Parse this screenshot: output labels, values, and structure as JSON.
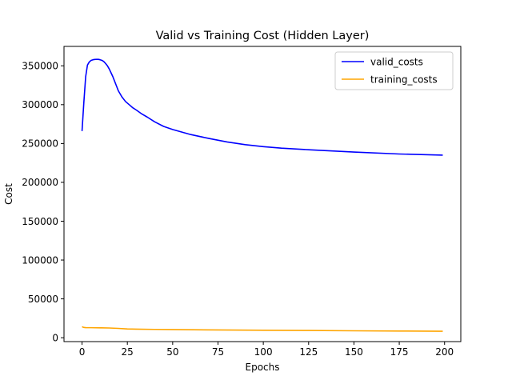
{
  "chart_data": {
    "type": "line",
    "title": "Valid vs Training Cost (Hidden Layer)",
    "xlabel": "Epochs",
    "ylabel": "Cost",
    "xlim": [
      -9.95,
      208.95
    ],
    "ylim": [
      -5000,
      375000
    ],
    "xticks": [
      0,
      25,
      50,
      75,
      100,
      125,
      150,
      175,
      200
    ],
    "yticks": [
      0,
      50000,
      100000,
      150000,
      200000,
      250000,
      300000,
      350000
    ],
    "grid": false,
    "legend_position": "top-right",
    "series": [
      {
        "name": "valid_costs",
        "color": "#0000ff",
        "x": [
          0,
          1,
          2,
          3,
          4,
          5,
          6,
          7,
          8,
          9,
          10,
          11,
          12,
          13,
          14,
          15,
          16,
          17,
          18,
          19,
          20,
          22,
          24,
          26,
          28,
          30,
          33,
          36,
          40,
          45,
          50,
          60,
          70,
          80,
          90,
          100,
          110,
          125,
          150,
          175,
          199
        ],
        "y": [
          266000,
          303000,
          336000,
          351000,
          355000,
          357000,
          357800,
          358200,
          358400,
          358300,
          357800,
          357000,
          355500,
          353000,
          350000,
          346000,
          341000,
          336000,
          330000,
          324000,
          318000,
          310000,
          304000,
          300000,
          296000,
          293000,
          288000,
          284000,
          278000,
          272000,
          268000,
          261500,
          256500,
          252000,
          248500,
          246000,
          244000,
          242000,
          239000,
          236500,
          235000
        ]
      },
      {
        "name": "training_costs",
        "color": "#ffa500",
        "x": [
          0,
          1,
          2,
          5,
          10,
          15,
          20,
          25,
          30,
          40,
          50,
          75,
          100,
          125,
          150,
          175,
          199
        ],
        "y": [
          14200,
          13200,
          13000,
          12900,
          12700,
          12500,
          12000,
          11300,
          11000,
          10700,
          10500,
          10000,
          9600,
          9300,
          8900,
          8600,
          8300
        ]
      }
    ]
  }
}
